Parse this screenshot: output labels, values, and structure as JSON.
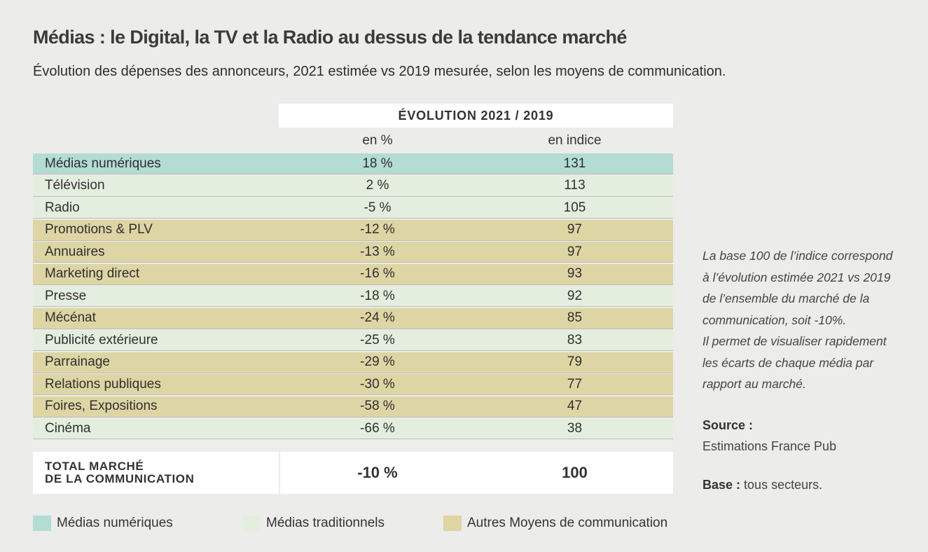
{
  "title": "Médias : le Digital, la TV et la Radio au dessus de la tendance marché",
  "subtitle": "Évolution des dépenses des annonceurs, 2021 estimée vs 2019 mesurée, selon les moyens de communication.",
  "table": {
    "group_header": "ÉVOLUTION 2021 / 2019",
    "col_pct": "en %",
    "col_index": "en indice",
    "total_label_line1": "TOTAL MARCHÉ",
    "total_label_line2": "DE LA COMMUNICATION",
    "total_pct": "-10 %",
    "total_index": "100"
  },
  "colors": {
    "medias_numeriques": "#b3dcd3",
    "medias_traditionnels": "#e3eede",
    "autres_moyens": "#ded5a4"
  },
  "chart_data": {
    "type": "table",
    "columns": [
      "en %",
      "en indice"
    ],
    "rows": [
      {
        "label": "Médias numériques",
        "pct": "18 %",
        "index": "131",
        "category": "num"
      },
      {
        "label": "Télévision",
        "pct": "2 %",
        "index": "113",
        "category": "trad"
      },
      {
        "label": "Radio",
        "pct": "-5 %",
        "index": "105",
        "category": "trad"
      },
      {
        "label": "Promotions & PLV",
        "pct": "-12 %",
        "index": "97",
        "category": "autre"
      },
      {
        "label": "Annuaires",
        "pct": "-13 %",
        "index": "97",
        "category": "autre"
      },
      {
        "label": "Marketing direct",
        "pct": "-16 %",
        "index": "93",
        "category": "autre"
      },
      {
        "label": "Presse",
        "pct": "-18 %",
        "index": "92",
        "category": "trad"
      },
      {
        "label": "Mécénat",
        "pct": "-24 %",
        "index": "85",
        "category": "autre"
      },
      {
        "label": "Publicité extérieure",
        "pct": "-25 %",
        "index": "83",
        "category": "trad"
      },
      {
        "label": "Parrainage",
        "pct": "-29 %",
        "index": "79",
        "category": "autre"
      },
      {
        "label": "Relations publiques",
        "pct": "-30 %",
        "index": "77",
        "category": "autre"
      },
      {
        "label": "Foires, Expositions",
        "pct": "-58 %",
        "index": "47",
        "category": "autre"
      },
      {
        "label": "Cinéma",
        "pct": "-66 %",
        "index": "38",
        "category": "trad"
      }
    ]
  },
  "legend": {
    "num": "Médias numériques",
    "trad": "Médias traditionnels",
    "autre": "Autres Moyens de communication"
  },
  "note": {
    "lines": [
      "La base 100 de l’indice correspond",
      "à l’évolution estimée 2021 vs 2019",
      "de l’ensemble du marché de la",
      "communication, soit -10%.",
      "Il permet de visualiser rapidement",
      "les écarts de chaque média par",
      "rapport au marché."
    ],
    "source_label": "Source :",
    "source_value": "Estimations France Pub",
    "base_label": "Base :",
    "base_value": "tous secteurs."
  }
}
